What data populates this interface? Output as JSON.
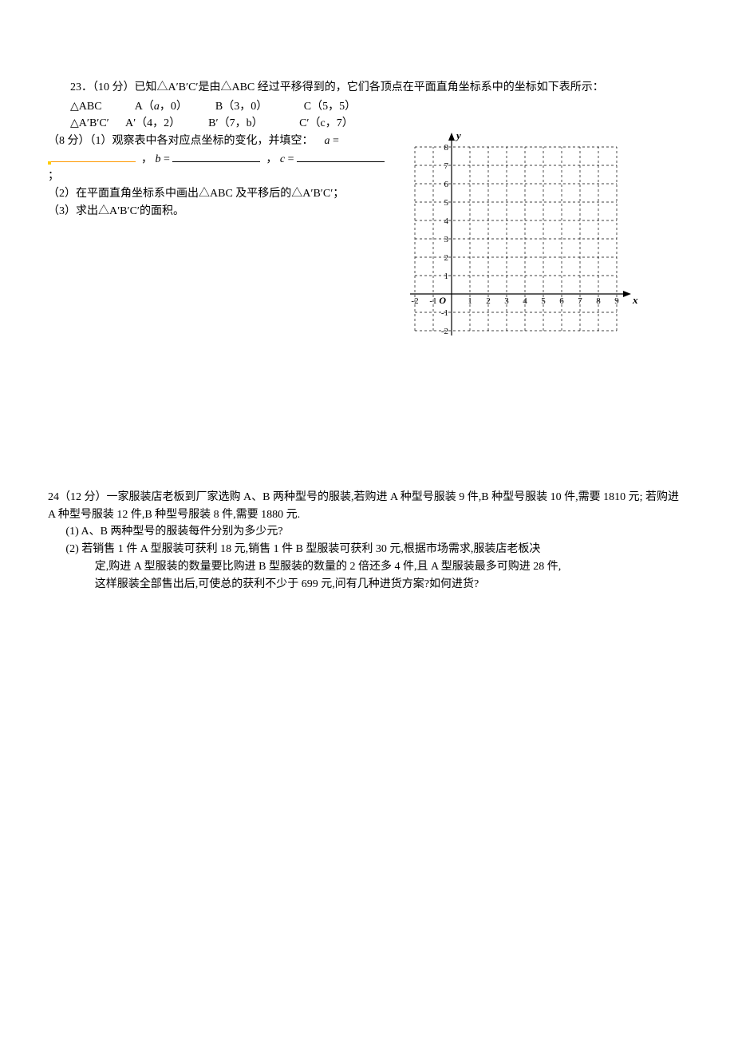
{
  "q23": {
    "number": "23．（10 分）",
    "intro": "已知△A′B′C′是由△ABC 经过平移得到的，它们各顶点在平面直角坐标系中的坐标如下表所示：",
    "row1": {
      "tri": "△ABC",
      "A": "A（",
      "Avar": "a",
      "Aend": "，0）",
      "B": "B（3，0）",
      "C": "C（5，5）"
    },
    "row2": {
      "tri": "△A′B′C′",
      "A": "A′（4，2）",
      "B": "B′（7，b）",
      "C": "C′（c，7）"
    },
    "part1_lead": "（8 分）（1）观察表中各对应点坐标的变化，并填空：",
    "var_a": "a",
    "eq": " = ",
    "comma": "，",
    "var_b": "b",
    "var_c": "c",
    "semicolon": "；",
    "part2": "（2）在平面直角坐标系中画出△ABC 及平移后的△A′B′C′；",
    "part3": "（3）求出△A′B′C′的面积。",
    "chart": {
      "x_min": -2,
      "x_max": 9,
      "y_min": -2,
      "y_max": 8,
      "x_ticks": [
        -2,
        -1,
        1,
        2,
        3,
        4,
        5,
        6,
        7,
        8,
        9
      ],
      "y_ticks": [
        -2,
        -1,
        1,
        2,
        3,
        4,
        5,
        6,
        7,
        8
      ],
      "origin_label": "O",
      "x_label": "x",
      "y_label": "y",
      "cell": 23,
      "axis_color": "#000000",
      "grid_color": "#000000",
      "grid_dash": "3,3",
      "label_fontsize": 11,
      "axis_label_fontsize": 13
    }
  },
  "q24": {
    "head": "24（12 分）一家服装店老板到厂家选购 A、B 两种型号的服装,若购进 A 种型号服装 9 件,B 种型号服装 10 件,需要 1810 元;  若购进 A 种型号服装 12 件,B 种型号服装 8 件,需要 1880 元.",
    "p1": "(1)  A、B 两种型号的服装每件分别为多少元?",
    "p2a": "(2)  若销售 1 件 A 型服装可获利 18 元,销售 1 件 B 型服装可获利 30 元,根据市场需求,服装店老板决",
    "p2b": "定,购进 A 型服装的数量要比购进 B 型服装的数量的 2 倍还多 4 件,且 A 型服装最多可购进 28 件,",
    "p2c": "这样服装全部售出后,可使总的获利不少于 699 元,问有几种进货方案?如何进货?"
  }
}
